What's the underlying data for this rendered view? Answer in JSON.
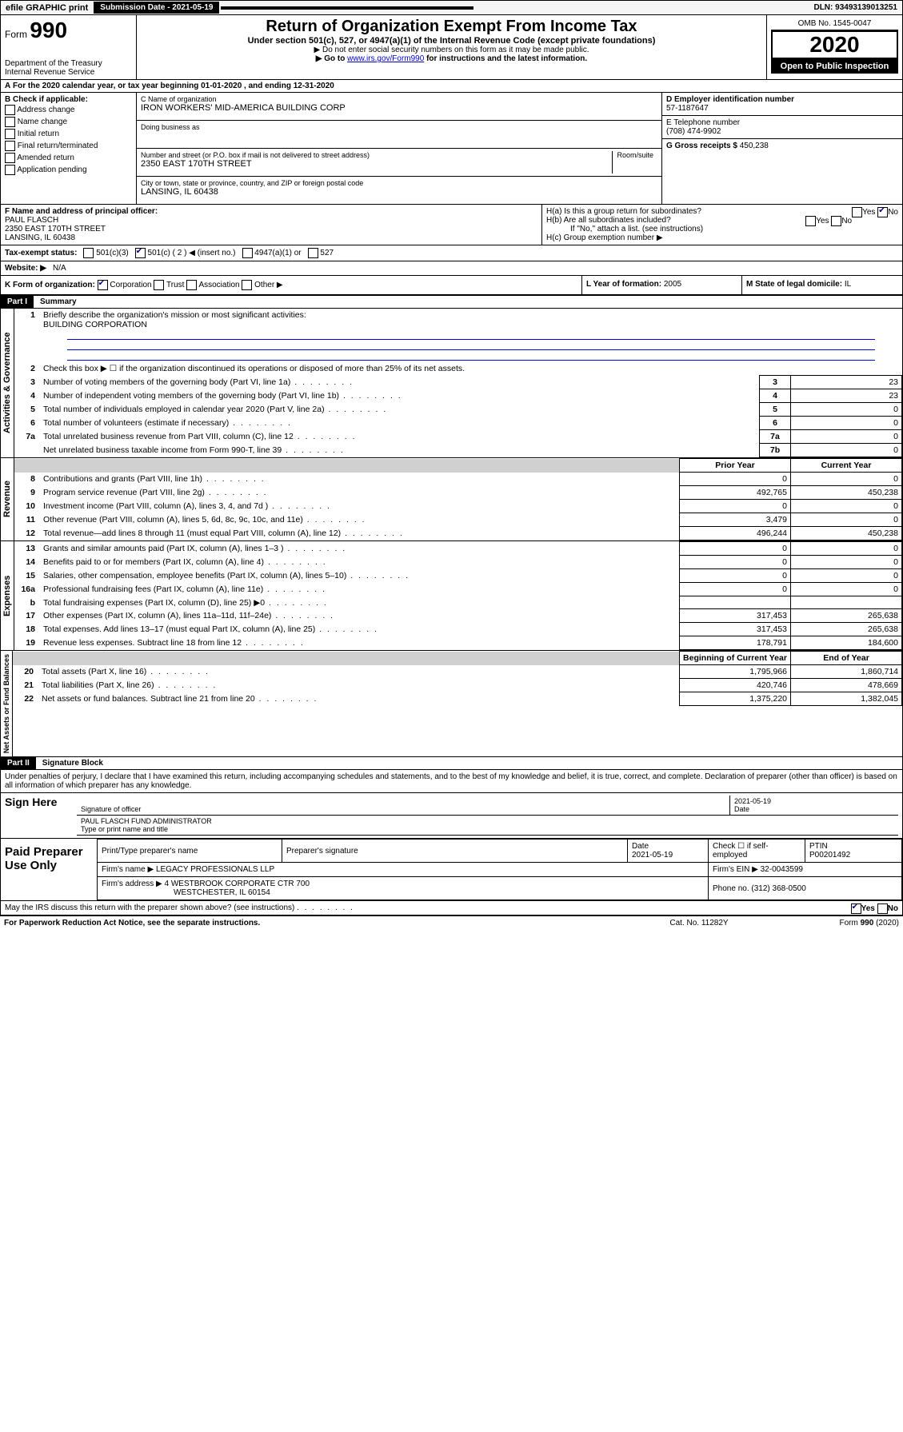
{
  "topbar": {
    "efile": "efile GRAPHIC print",
    "sub": "Submission Date - 2021-05-19",
    "dln": "DLN: 93493139013251"
  },
  "header": {
    "form": "Form",
    "num": "990",
    "dept": "Department of the Treasury\nInternal Revenue Service",
    "title": "Return of Organization Exempt From Income Tax",
    "sub": "Under section 501(c), 527, or 4947(a)(1) of the Internal Revenue Code (except private foundations)",
    "note1": "▶ Do not enter social security numbers on this form as it may be made public.",
    "note2_pre": "▶ Go to ",
    "note2_link": "www.irs.gov/Form990",
    "note2_post": " for instructions and the latest information.",
    "omb": "OMB No. 1545-0047",
    "year": "2020",
    "open": "Open to Public Inspection"
  },
  "A": {
    "text": "For the 2020 calendar year, or tax year beginning 01-01-2020   , and ending 12-31-2020"
  },
  "B": {
    "label": "B Check if applicable:",
    "items": [
      "Address change",
      "Name change",
      "Initial return",
      "Final return/terminated",
      "Amended return",
      "Application pending"
    ]
  },
  "C": {
    "name_lbl": "C Name of organization",
    "name": "IRON WORKERS' MID-AMERICA BUILDING CORP",
    "dba_lbl": "Doing business as",
    "dba": "",
    "addr_lbl": "Number and street (or P.O. box if mail is not delivered to street address)",
    "room_lbl": "Room/suite",
    "addr": "2350 EAST 170TH STREET",
    "city_lbl": "City or town, state or province, country, and ZIP or foreign postal code",
    "city": "LANSING, IL  60438"
  },
  "D": {
    "lbl": "D Employer identification number",
    "val": "57-1187647"
  },
  "E": {
    "lbl": "E Telephone number",
    "val": "(708) 474-9902"
  },
  "G": {
    "lbl": "G Gross receipts $",
    "val": "450,238"
  },
  "F": {
    "lbl": "F  Name and address of principal officer:",
    "name": "PAUL FLASCH",
    "addr": "2350 EAST 170TH STREET",
    "city": "LANSING, IL  60438"
  },
  "H": {
    "a": "H(a)  Is this a group return for subordinates?",
    "b": "H(b)  Are all subordinates included?",
    "bnote": "If \"No,\" attach a list. (see instructions)",
    "c": "H(c)  Group exemption number ▶"
  },
  "I": {
    "lbl": "Tax-exempt status:",
    "opts": [
      "501(c)(3)",
      "501(c) ( 2 ) ◀ (insert no.)",
      "4947(a)(1) or",
      "527"
    ]
  },
  "J": {
    "lbl": "Website: ▶",
    "val": "N/A"
  },
  "K": {
    "lbl": "K Form of organization:",
    "opts": [
      "Corporation",
      "Trust",
      "Association",
      "Other ▶"
    ]
  },
  "L": {
    "lbl": "L Year of formation:",
    "val": "2005"
  },
  "M": {
    "lbl": "M State of legal domicile:",
    "val": "IL"
  },
  "part1": {
    "hdr": "Part I",
    "title": "Summary"
  },
  "summary": {
    "q1": "Briefly describe the organization's mission or most significant activities:",
    "mission": "BUILDING CORPORATION",
    "q2": "Check this box ▶ ☐  if the organization discontinued its operations or disposed of more than 25% of its net assets.",
    "lines_gov": [
      {
        "n": "3",
        "d": "Number of voting members of the governing body (Part VI, line 1a)",
        "b": "3",
        "v": "23"
      },
      {
        "n": "4",
        "d": "Number of independent voting members of the governing body (Part VI, line 1b)",
        "b": "4",
        "v": "23"
      },
      {
        "n": "5",
        "d": "Total number of individuals employed in calendar year 2020 (Part V, line 2a)",
        "b": "5",
        "v": "0"
      },
      {
        "n": "6",
        "d": "Total number of volunteers (estimate if necessary)",
        "b": "6",
        "v": "0"
      },
      {
        "n": "7a",
        "d": "Total unrelated business revenue from Part VIII, column (C), line 12",
        "b": "7a",
        "v": "0"
      },
      {
        "n": "",
        "d": "Net unrelated business taxable income from Form 990-T, line 39",
        "b": "7b",
        "v": "0"
      }
    ],
    "col_prior": "Prior Year",
    "col_current": "Current Year",
    "rev": [
      {
        "n": "8",
        "d": "Contributions and grants (Part VIII, line 1h)",
        "p": "0",
        "c": "0"
      },
      {
        "n": "9",
        "d": "Program service revenue (Part VIII, line 2g)",
        "p": "492,765",
        "c": "450,238"
      },
      {
        "n": "10",
        "d": "Investment income (Part VIII, column (A), lines 3, 4, and 7d )",
        "p": "0",
        "c": "0"
      },
      {
        "n": "11",
        "d": "Other revenue (Part VIII, column (A), lines 5, 6d, 8c, 9c, 10c, and 11e)",
        "p": "3,479",
        "c": "0"
      },
      {
        "n": "12",
        "d": "Total revenue—add lines 8 through 11 (must equal Part VIII, column (A), line 12)",
        "p": "496,244",
        "c": "450,238"
      }
    ],
    "exp": [
      {
        "n": "13",
        "d": "Grants and similar amounts paid (Part IX, column (A), lines 1–3 )",
        "p": "0",
        "c": "0"
      },
      {
        "n": "14",
        "d": "Benefits paid to or for members (Part IX, column (A), line 4)",
        "p": "0",
        "c": "0"
      },
      {
        "n": "15",
        "d": "Salaries, other compensation, employee benefits (Part IX, column (A), lines 5–10)",
        "p": "0",
        "c": "0"
      },
      {
        "n": "16a",
        "d": "Professional fundraising fees (Part IX, column (A), line 11e)",
        "p": "0",
        "c": "0"
      },
      {
        "n": "b",
        "d": "Total fundraising expenses (Part IX, column (D), line 25) ▶0",
        "p": "",
        "c": "",
        "grey": true
      },
      {
        "n": "17",
        "d": "Other expenses (Part IX, column (A), lines 11a–11d, 11f–24e)",
        "p": "317,453",
        "c": "265,638"
      },
      {
        "n": "18",
        "d": "Total expenses. Add lines 13–17 (must equal Part IX, column (A), line 25)",
        "p": "317,453",
        "c": "265,638"
      },
      {
        "n": "19",
        "d": "Revenue less expenses. Subtract line 18 from line 12",
        "p": "178,791",
        "c": "184,600"
      }
    ],
    "col_begin": "Beginning of Current Year",
    "col_end": "End of Year",
    "net": [
      {
        "n": "20",
        "d": "Total assets (Part X, line 16)",
        "p": "1,795,966",
        "c": "1,860,714"
      },
      {
        "n": "21",
        "d": "Total liabilities (Part X, line 26)",
        "p": "420,746",
        "c": "478,669"
      },
      {
        "n": "22",
        "d": "Net assets or fund balances. Subtract line 21 from line 20",
        "p": "1,375,220",
        "c": "1,382,045"
      }
    ]
  },
  "side": {
    "gov": "Activities & Governance",
    "rev": "Revenue",
    "exp": "Expenses",
    "net": "Net Assets or Fund Balances"
  },
  "part2": {
    "hdr": "Part II",
    "title": "Signature Block",
    "decl": "Under penalties of perjury, I declare that I have examined this return, including accompanying schedules and statements, and to the best of my knowledge and belief, it is true, correct, and complete. Declaration of preparer (other than officer) is based on all information of which preparer has any knowledge."
  },
  "sign": {
    "here": "Sign Here",
    "sig_lbl": "Signature of officer",
    "date_lbl": "Date",
    "date": "2021-05-19",
    "name": "PAUL FLASCH  FUND ADMINISTRATOR",
    "name_lbl": "Type or print name and title"
  },
  "paid": {
    "lbl": "Paid Preparer Use Only",
    "h1": "Print/Type preparer's name",
    "h2": "Preparer's signature",
    "h3": "Date",
    "h4": "Check ☐ if self-employed",
    "h5": "PTIN",
    "date": "2021-05-19",
    "ptin": "P00201492",
    "firm_lbl": "Firm's name    ▶",
    "firm": "LEGACY PROFESSIONALS LLP",
    "ein_lbl": "Firm's EIN ▶",
    "ein": "32-0043599",
    "addr_lbl": "Firm's address ▶",
    "addr": "4 WESTBROOK CORPORATE CTR 700",
    "addr2": "WESTCHESTER, IL  60154",
    "phone_lbl": "Phone no.",
    "phone": "(312) 368-0500"
  },
  "discuss": "May the IRS discuss this return with the preparer shown above? (see instructions)",
  "footer": {
    "l": "For Paperwork Reduction Act Notice, see the separate instructions.",
    "c": "Cat. No. 11282Y",
    "r": "Form 990 (2020)"
  }
}
